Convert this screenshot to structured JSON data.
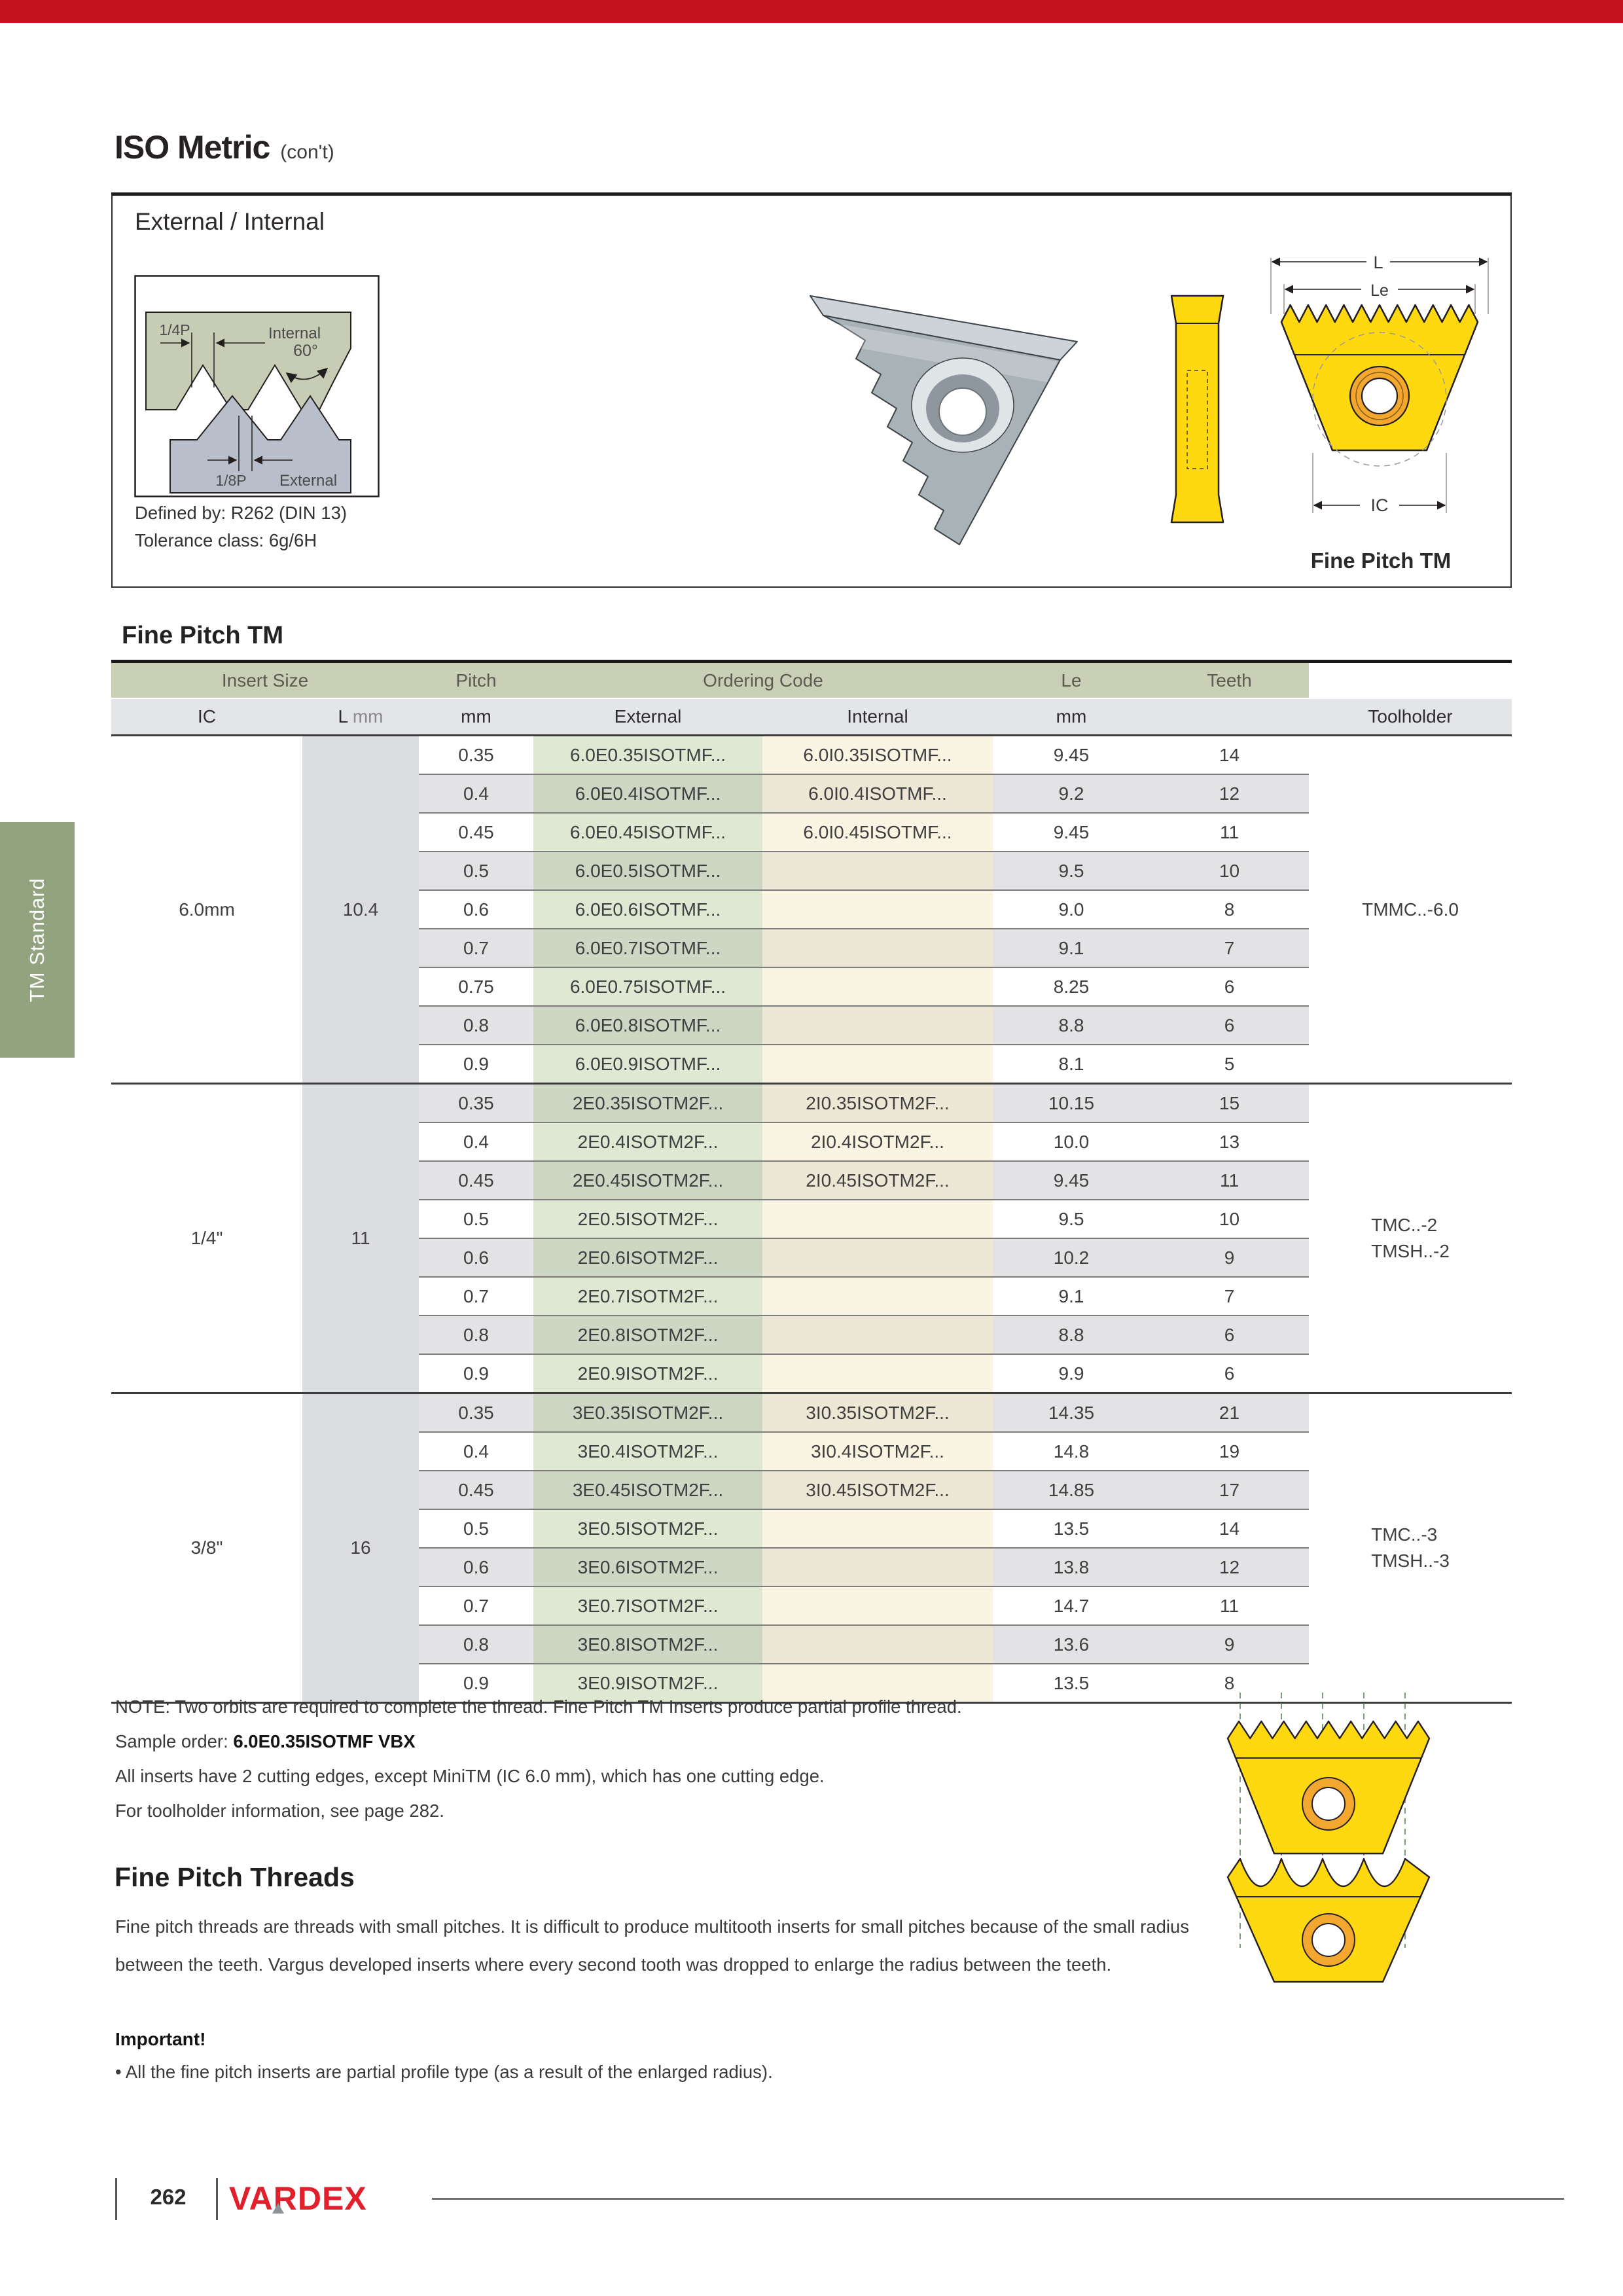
{
  "page": {
    "title": "ISO Metric",
    "title_suffix": "(con't)"
  },
  "sidebar": {
    "label": "TM Standard"
  },
  "box": {
    "heading": "External / Internal",
    "defined_by": "Defined by: R262 (DIN 13)",
    "tolerance": "Tolerance class: 6g/6H",
    "caption": "Fine Pitch TM",
    "diagram": {
      "quarter_p": "1/4P",
      "internal_label": "Internal",
      "angle": "60°",
      "eighth_p": "1/8P",
      "external_label": "External"
    },
    "dims": {
      "l": "L",
      "le": "Le",
      "ic": "IC"
    }
  },
  "table": {
    "section_title": "Fine Pitch TM",
    "header1": {
      "insert_size": "Insert Size",
      "pitch": "Pitch",
      "ordering_code": "Ordering Code",
      "le": "Le",
      "teeth": "Teeth"
    },
    "header2": {
      "ic": "IC",
      "l": "L",
      "l_unit": " mm",
      "pitch_mm": "mm",
      "external": "External",
      "internal": "Internal",
      "le_mm": "mm",
      "toolholder": "Toolholder"
    },
    "groups": [
      {
        "ic": "6.0mm",
        "l": "10.4",
        "toolholder": [
          "TMMC..-6.0"
        ],
        "rows": [
          {
            "pitch": "0.35",
            "external": "6.0E0.35ISOTMF...",
            "internal": "6.0I0.35ISOTMF...",
            "le": "9.45",
            "teeth": "14"
          },
          {
            "pitch": "0.4",
            "external": "6.0E0.4ISOTMF...",
            "internal": "6.0I0.4ISOTMF...",
            "le": "9.2",
            "teeth": "12"
          },
          {
            "pitch": "0.45",
            "external": "6.0E0.45ISOTMF...",
            "internal": "6.0I0.45ISOTMF...",
            "le": "9.45",
            "teeth": "11"
          },
          {
            "pitch": "0.5",
            "external": "6.0E0.5ISOTMF...",
            "internal": "",
            "le": "9.5",
            "teeth": "10"
          },
          {
            "pitch": "0.6",
            "external": "6.0E0.6ISOTMF...",
            "internal": "",
            "le": "9.0",
            "teeth": "8"
          },
          {
            "pitch": "0.7",
            "external": "6.0E0.7ISOTMF...",
            "internal": "",
            "le": "9.1",
            "teeth": "7"
          },
          {
            "pitch": "0.75",
            "external": "6.0E0.75ISOTMF...",
            "internal": "",
            "le": "8.25",
            "teeth": "6"
          },
          {
            "pitch": "0.8",
            "external": "6.0E0.8ISOTMF...",
            "internal": "",
            "le": "8.8",
            "teeth": "6"
          },
          {
            "pitch": "0.9",
            "external": "6.0E0.9ISOTMF...",
            "internal": "",
            "le": "8.1",
            "teeth": "5"
          }
        ]
      },
      {
        "ic": "1/4\"",
        "l": "11",
        "toolholder": [
          "TMC..-2",
          "TMSH..-2"
        ],
        "rows": [
          {
            "pitch": "0.35",
            "external": "2E0.35ISOTM2F...",
            "internal": "2I0.35ISOTM2F...",
            "le": "10.15",
            "teeth": "15"
          },
          {
            "pitch": "0.4",
            "external": "2E0.4ISOTM2F...",
            "internal": "2I0.4ISOTM2F...",
            "le": "10.0",
            "teeth": "13"
          },
          {
            "pitch": "0.45",
            "external": "2E0.45ISOTM2F...",
            "internal": "2I0.45ISOTM2F...",
            "le": "9.45",
            "teeth": "11"
          },
          {
            "pitch": "0.5",
            "external": "2E0.5ISOTM2F...",
            "internal": "",
            "le": "9.5",
            "teeth": "10"
          },
          {
            "pitch": "0.6",
            "external": "2E0.6ISOTM2F...",
            "internal": "",
            "le": "10.2",
            "teeth": "9"
          },
          {
            "pitch": "0.7",
            "external": "2E0.7ISOTM2F...",
            "internal": "",
            "le": "9.1",
            "teeth": "7"
          },
          {
            "pitch": "0.8",
            "external": "2E0.8ISOTM2F...",
            "internal": "",
            "le": "8.8",
            "teeth": "6"
          },
          {
            "pitch": "0.9",
            "external": "2E0.9ISOTM2F...",
            "internal": "",
            "le": "9.9",
            "teeth": "6"
          }
        ]
      },
      {
        "ic": "3/8\"",
        "l": "16",
        "toolholder": [
          "TMC..-3",
          "TMSH..-3"
        ],
        "rows": [
          {
            "pitch": "0.35",
            "external": "3E0.35ISOTM2F...",
            "internal": "3I0.35ISOTM2F...",
            "le": "14.35",
            "teeth": "21"
          },
          {
            "pitch": "0.4",
            "external": "3E0.4ISOTM2F...",
            "internal": "3I0.4ISOTM2F...",
            "le": "14.8",
            "teeth": "19"
          },
          {
            "pitch": "0.45",
            "external": "3E0.45ISOTM2F...",
            "internal": "3I0.45ISOTM2F...",
            "le": "14.85",
            "teeth": "17"
          },
          {
            "pitch": "0.5",
            "external": "3E0.5ISOTM2F...",
            "internal": "",
            "le": "13.5",
            "teeth": "14"
          },
          {
            "pitch": "0.6",
            "external": "3E0.6ISOTM2F...",
            "internal": "",
            "le": "13.8",
            "teeth": "12"
          },
          {
            "pitch": "0.7",
            "external": "3E0.7ISOTM2F...",
            "internal": "",
            "le": "14.7",
            "teeth": "11"
          },
          {
            "pitch": "0.8",
            "external": "3E0.8ISOTM2F...",
            "internal": "",
            "le": "13.6",
            "teeth": "9"
          },
          {
            "pitch": "0.9",
            "external": "3E0.9ISOTM2F...",
            "internal": "",
            "le": "13.5",
            "teeth": "8"
          }
        ]
      }
    ]
  },
  "notes": {
    "note": "NOTE: Two orbits are required to complete the thread. Fine Pitch TM Inserts produce partial profile thread.",
    "sample_prefix": "Sample order: ",
    "sample_code": "6.0E0.35ISOTMF VBX",
    "edges": "All inserts have 2 cutting edges, except MiniTM (IC 6.0 mm), which has one cutting edge.",
    "toolholder_info": "For toolholder information, see page 282."
  },
  "threads": {
    "title": "Fine Pitch Threads",
    "body": "Fine pitch threads are threads with small pitches. It is difficult to produce multitooth inserts for small pitches because of the small radius between the teeth. Vargus developed inserts where every second tooth was dropped to enlarge the radius between the teeth."
  },
  "important": {
    "title": "Important!",
    "bullet": "• All the fine pitch inserts are partial profile type (as a result of the enlarged radius)."
  },
  "footer": {
    "page_number": "262",
    "brand": "VARDEX"
  },
  "colors": {
    "top_bar": "#c5121f",
    "brand_red": "#e2202c",
    "sidebar_green": "#91a37f",
    "header_green": "#c9d0b6",
    "header_gray": "#e4e5e8",
    "external_light": "#dfe8d3",
    "external_dark": "#cdd7c4",
    "internal_light": "#f9f5e2",
    "internal_dark": "#ece8d5",
    "row_gray": "#e3e3e6",
    "insert_yellow": "#ffd90f",
    "ring_orange": "#f3a72f"
  }
}
